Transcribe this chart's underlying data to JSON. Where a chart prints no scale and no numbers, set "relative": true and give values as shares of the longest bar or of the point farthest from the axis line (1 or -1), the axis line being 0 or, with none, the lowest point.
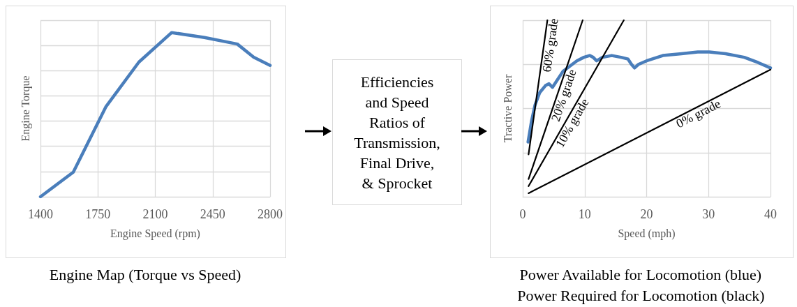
{
  "chart_data": [
    {
      "type": "line",
      "xlabel": "Engine Speed (rpm)",
      "ylabel": "Engine Torque",
      "relative": true,
      "grid": true,
      "marker": "none",
      "line_style": "solid",
      "legend": false,
      "tick_labels": "x",
      "annotations": [
        "Engine Map (Torque vs Speed)"
      ],
      "xlim": [
        1400,
        2800
      ],
      "xticks": [
        1400,
        1750,
        2100,
        2450,
        2800
      ],
      "x": [
        1400,
        1600,
        1800,
        2000,
        2200,
        2400,
        2600,
        2700,
        2800
      ],
      "series": [
        {
          "color": "#4a7ebb",
          "values": [
            0,
            0.15,
            0.55,
            0.82,
            1,
            0.97,
            0.93,
            0.85,
            0.8
          ]
        }
      ]
    },
    {
      "type": "other",
      "title": "Efficiencies\nand Speed\nRatios of\nTransmission,\nFinal Drive,\n& Sprocket"
    },
    {
      "type": "line",
      "xlabel": "Speed (mph)",
      "ylabel": "Tractive Power",
      "relative": true,
      "grid": true,
      "marker": "none",
      "line_style": "solid",
      "legend": false,
      "tick_labels": "x",
      "annotations": [
        "Power Available for Locomotion (blue)",
        "Power Required for Locomotion (black)"
      ],
      "xlim": [
        0,
        40
      ],
      "xticks": [
        0,
        10,
        20,
        30,
        40
      ],
      "series": [
        {
          "color": "#4a7ebb",
          "x": [
            0.86,
            1.43,
            1.99,
            2.74,
            3.68,
            4.24,
            4.8,
            5.37,
            6.49,
            7.62,
            8.74,
            9.87,
            10.81,
            11.37,
            11.93,
            12.87,
            14.37,
            15.87,
            17,
            17.56,
            18.05,
            18.69,
            20,
            22.63,
            25.63,
            28.26,
            30.13,
            32.76,
            35.76,
            38.01,
            40
          ],
          "values": [
            0.31,
            0.43,
            0.52,
            0.59,
            0.63,
            0.64,
            0.62,
            0.65,
            0.71,
            0.74,
            0.77,
            0.79,
            0.8,
            0.79,
            0.77,
            0.79,
            0.8,
            0.79,
            0.78,
            0.75,
            0.73,
            0.75,
            0.77,
            0.8,
            0.81,
            0.82,
            0.82,
            0.81,
            0.79,
            0.76,
            0.73
          ]
        },
        {
          "name": "60% grade",
          "color": "#000000",
          "x": [
            0.94,
            3.98
          ],
          "values": [
            0.24,
            1
          ]
        },
        {
          "name": "20% grade",
          "color": "#000000",
          "x": [
            0.94,
            9.68
          ],
          "values": [
            0.1,
            1
          ]
        },
        {
          "name": "10% grade",
          "color": "#000000",
          "x": [
            0.94,
            16.32
          ],
          "values": [
            0.06,
            1
          ]
        },
        {
          "name": "0% grade",
          "color": "#000000",
          "x": [
            0.94,
            40
          ],
          "values": [
            0.02,
            0.72
          ]
        }
      ]
    }
  ]
}
